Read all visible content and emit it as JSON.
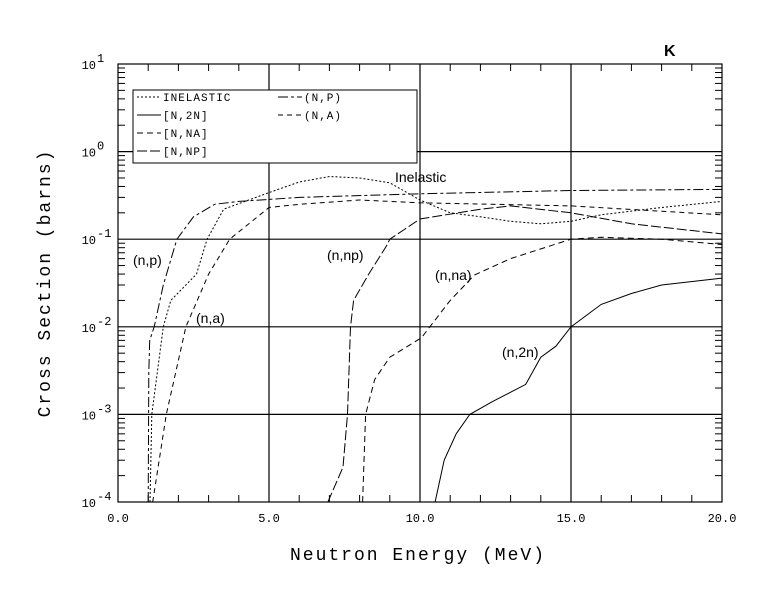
{
  "chart_data": {
    "type": "line",
    "title": "K",
    "xlabel": "Neutron Energy (MeV)",
    "ylabel": "Cross Section (barns)",
    "xlim": [
      0,
      20
    ],
    "ylim": [
      0.0001,
      10
    ],
    "yscale": "log",
    "grid": true,
    "legend_position": "top-left",
    "x_ticks": [
      "0.0",
      "5.0",
      "10.0",
      "15.0",
      "20.0"
    ],
    "y_ticks": [
      {
        "base": "10",
        "exp": "1"
      },
      {
        "base": "10",
        "exp": "0"
      },
      {
        "base": "10",
        "exp": "-1"
      },
      {
        "base": "10",
        "exp": "-2"
      },
      {
        "base": "10",
        "exp": "-3"
      },
      {
        "base": "10",
        "exp": "-4"
      }
    ],
    "series": [
      {
        "name": "INELASTIC",
        "label": "Inelastic",
        "dash": "2,2",
        "x": [
          1.06,
          1.12,
          1.5,
          1.75,
          2.6,
          2.95,
          3.5,
          5,
          6,
          7,
          8,
          9,
          10,
          11,
          12,
          13,
          14,
          15,
          16,
          18,
          20
        ],
        "y": [
          0.0001,
          0.001,
          0.01,
          0.02,
          0.04,
          0.1,
          0.22,
          0.34,
          0.45,
          0.52,
          0.5,
          0.44,
          0.28,
          0.2,
          0.18,
          0.16,
          0.15,
          0.16,
          0.19,
          0.23,
          0.27
        ]
      },
      {
        "name": "[N,2N]",
        "label": "(n,2n)",
        "dash": "",
        "x": [
          10.5,
          10.8,
          11.2,
          11.65,
          12.4,
          13.5,
          14,
          14.5,
          15,
          16,
          17,
          18,
          20
        ],
        "y": [
          0.0001,
          0.0003,
          0.0006,
          0.001,
          0.0014,
          0.0022,
          0.0045,
          0.006,
          0.01,
          0.018,
          0.024,
          0.03,
          0.036
        ]
      },
      {
        "name": "[N,NA]",
        "label": "(n,na)",
        "dash": "6,4",
        "x": [
          8.1,
          8.2,
          8.5,
          9.0,
          10.05,
          11,
          11.8,
          13,
          15,
          16,
          18,
          20
        ],
        "y": [
          0.0001,
          0.001,
          0.0025,
          0.0045,
          0.0075,
          0.02,
          0.039,
          0.06,
          0.1,
          0.105,
          0.1,
          0.087
        ]
      },
      {
        "name": "[N,NP]",
        "label": "(n,np)",
        "dash": "10,3",
        "x": [
          6.95,
          7.45,
          7.6,
          7.7,
          7.8,
          8.3,
          8.9,
          9.0,
          10,
          12,
          13,
          15,
          17,
          20
        ],
        "y": [
          0.0001,
          0.00025,
          0.001,
          0.01,
          0.02,
          0.04,
          0.085,
          0.1,
          0.17,
          0.22,
          0.24,
          0.2,
          0.15,
          0.115
        ]
      },
      {
        "name": "(N,P)",
        "label": "(n,p)",
        "dash": "10,3,3,3",
        "x": [
          1.0,
          1.02,
          1.05,
          1.2,
          1.5,
          1.95,
          2.5,
          3.2,
          4,
          6,
          10,
          15,
          20
        ],
        "y": [
          0.0001,
          0.003,
          0.007,
          0.01,
          0.03,
          0.1,
          0.18,
          0.25,
          0.27,
          0.3,
          0.33,
          0.36,
          0.37
        ]
      },
      {
        "name": "(N,A)",
        "label": "(n,a)",
        "dash": "5,4",
        "x": [
          1.15,
          1.6,
          2.25,
          3.0,
          3.7,
          5,
          6,
          8,
          10,
          15,
          20
        ],
        "y": [
          0.0001,
          0.001,
          0.01,
          0.04,
          0.1,
          0.23,
          0.25,
          0.28,
          0.26,
          0.24,
          0.19
        ]
      }
    ]
  }
}
